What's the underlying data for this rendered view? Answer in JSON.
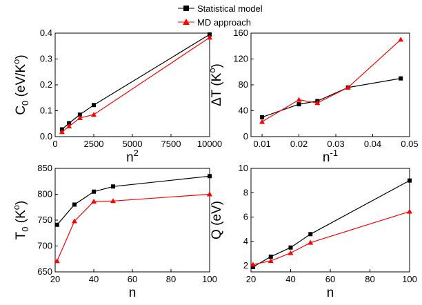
{
  "legend": [
    {
      "label": "Statistical model",
      "color": "#000000",
      "marker": "square"
    },
    {
      "label": "MD approach",
      "color": "#ff0000",
      "marker": "triangle"
    }
  ],
  "chart_data": [
    {
      "type": "line",
      "title": "",
      "xlabel": {
        "base": "n",
        "sup": "2"
      },
      "ylabel": {
        "base": "C",
        "sub": "0",
        "rest": " (eV/K",
        "sup": "o",
        "tail": ")"
      },
      "xlim": [
        0,
        10000
      ],
      "ylim": [
        0,
        0.4
      ],
      "xticks": [
        0,
        2500,
        5000,
        7500,
        10000
      ],
      "xticklabels": [
        "0",
        "2500",
        "5000",
        "7500",
        "10000"
      ],
      "yticks": [
        0,
        0.1,
        0.2,
        0.3,
        0.4
      ],
      "yticklabels": [
        "0.0",
        "0.1",
        "0.2",
        "0.3",
        "0.4"
      ],
      "series": [
        {
          "name": "Statistical model",
          "x": [
            441,
            900,
            1600,
            2500,
            10000
          ],
          "y": [
            0.028,
            0.052,
            0.085,
            0.122,
            0.395
          ]
        },
        {
          "name": "MD approach",
          "x": [
            441,
            900,
            1600,
            2500,
            10000
          ],
          "y": [
            0.018,
            0.04,
            0.072,
            0.085,
            0.383
          ]
        }
      ]
    },
    {
      "type": "line",
      "title": "",
      "xlabel": {
        "base": "n",
        "sup": "-1"
      },
      "ylabel": {
        "base": "ΔT (K",
        "sup": "o",
        "tail": ")"
      },
      "xlim": [
        0.007,
        0.05
      ],
      "ylim": [
        0,
        160
      ],
      "xticks": [
        0.01,
        0.02,
        0.03,
        0.04,
        0.05
      ],
      "xticklabels": [
        "0.01",
        "0.02",
        "0.03",
        "0.04",
        "0.05"
      ],
      "yticks": [
        0,
        40,
        80,
        120,
        160
      ],
      "yticklabels": [
        "0",
        "40",
        "80",
        "120",
        "160"
      ],
      "series": [
        {
          "name": "Statistical model",
          "x": [
            0.01,
            0.02,
            0.025,
            0.0333,
            0.0476
          ],
          "y": [
            30,
            50,
            55,
            76,
            90
          ]
        },
        {
          "name": "MD approach",
          "x": [
            0.01,
            0.02,
            0.025,
            0.0333,
            0.0476
          ],
          "y": [
            23,
            57,
            52,
            76,
            150
          ]
        }
      ]
    },
    {
      "type": "line",
      "title": "",
      "xlabel": {
        "base": "n"
      },
      "ylabel": {
        "base": "T",
        "sub": "0",
        "rest": " (K",
        "sup": "o",
        "tail": ")"
      },
      "xlim": [
        20,
        100
      ],
      "ylim": [
        650,
        850
      ],
      "xticks": [
        20,
        40,
        60,
        80,
        100
      ],
      "xticklabels": [
        "20",
        "40",
        "60",
        "80",
        "100"
      ],
      "yticks": [
        650,
        700,
        750,
        800,
        850
      ],
      "yticklabels": [
        "650",
        "700",
        "750",
        "800",
        "850"
      ],
      "series": [
        {
          "name": "Statistical model",
          "x": [
            21,
            30,
            40,
            50,
            100
          ],
          "y": [
            741,
            780,
            805,
            815,
            835
          ]
        },
        {
          "name": "MD approach",
          "x": [
            21,
            30,
            40,
            50,
            100
          ],
          "y": [
            671,
            748,
            786,
            787,
            800
          ]
        }
      ]
    },
    {
      "type": "line",
      "title": "",
      "xlabel": {
        "base": "n"
      },
      "ylabel": {
        "base": "Q (eV)"
      },
      "xlim": [
        20,
        100
      ],
      "ylim": [
        1.5,
        10
      ],
      "xticks": [
        20,
        40,
        60,
        80,
        100
      ],
      "xticklabels": [
        "20",
        "40",
        "60",
        "80",
        "100"
      ],
      "yticks": [
        2,
        4,
        6,
        8,
        10
      ],
      "yticklabels": [
        "2",
        "4",
        "6",
        "8",
        "10"
      ],
      "series": [
        {
          "name": "Statistical model",
          "x": [
            21,
            30,
            40,
            50,
            100
          ],
          "y": [
            1.9,
            2.75,
            3.5,
            4.6,
            9.0
          ]
        },
        {
          "name": "MD approach",
          "x": [
            21,
            30,
            40,
            50,
            100
          ],
          "y": [
            2.1,
            2.4,
            3.05,
            3.9,
            6.45
          ]
        }
      ]
    }
  ]
}
